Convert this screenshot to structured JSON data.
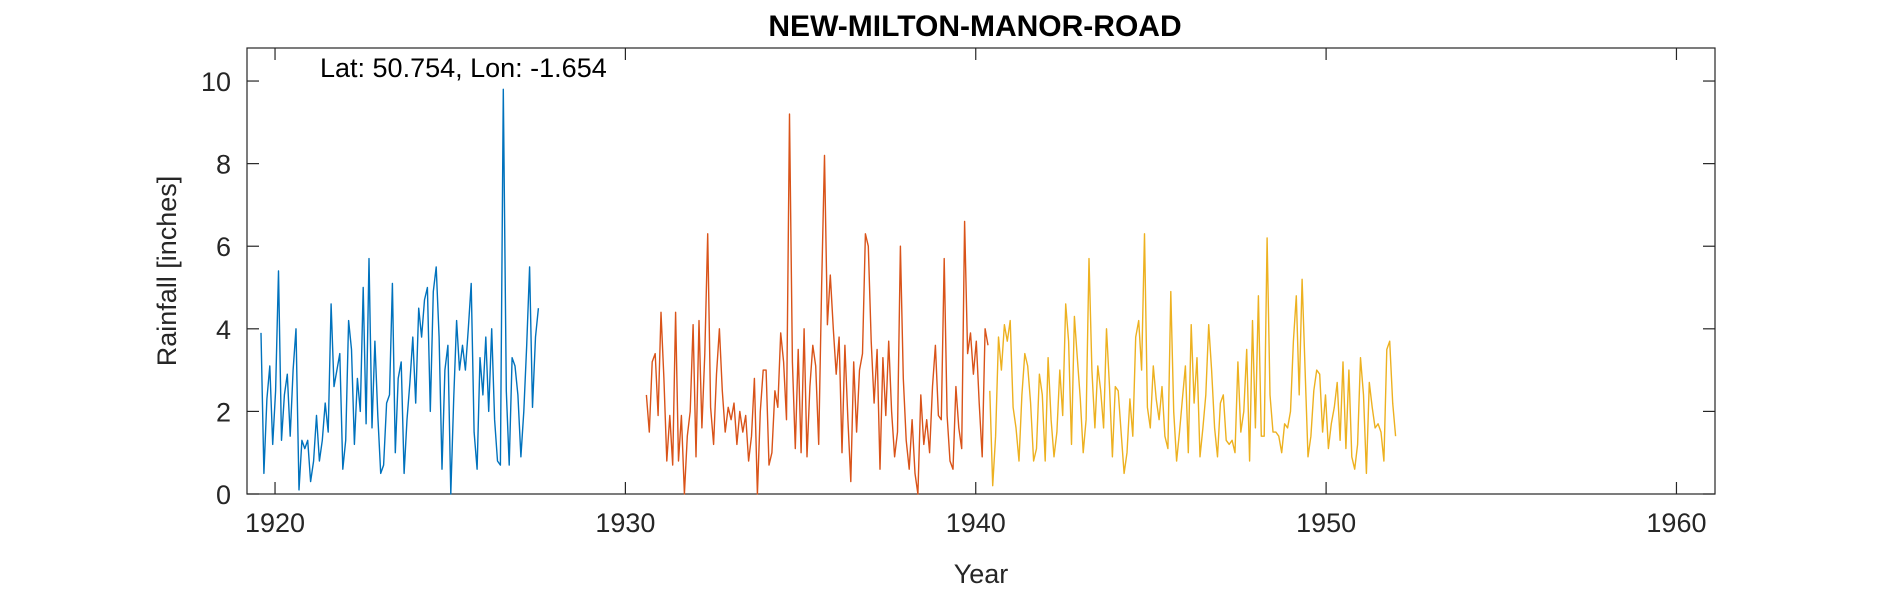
{
  "chart_data": {
    "type": "line",
    "title": "NEW-MILTON-MANOR-ROAD",
    "xlabel": "Year",
    "ylabel": "Rainfall [inches]",
    "annotation": "Lat: 50.754, Lon: -1.654",
    "xlim": [
      1919.2,
      1961.1
    ],
    "ylim": [
      0,
      10.8
    ],
    "xticks": [
      1920,
      1930,
      1940,
      1950,
      1960
    ],
    "yticks": [
      0,
      2,
      4,
      6,
      8,
      10
    ],
    "grid": false,
    "series": [
      {
        "color": "#0072BD",
        "x_start": 1919.6,
        "step": 0.08333,
        "values": [
          3.9,
          0.5,
          2.3,
          3.1,
          1.2,
          2.5,
          5.4,
          1.3,
          2.4,
          2.9,
          1.4,
          3.0,
          4.0,
          0.1,
          1.3,
          1.1,
          1.3,
          0.3,
          0.8,
          1.9,
          0.8,
          1.3,
          2.2,
          1.5,
          4.6,
          2.6,
          3.0,
          3.4,
          0.6,
          1.3,
          4.2,
          3.5,
          1.2,
          2.8,
          2.0,
          5.0,
          1.7,
          5.7,
          1.6,
          3.7,
          1.9,
          0.5,
          0.7,
          2.2,
          2.4,
          5.1,
          1.0,
          2.8,
          3.2,
          0.5,
          1.8,
          2.7,
          3.8,
          2.2,
          4.5,
          3.8,
          4.7,
          5.0,
          2.0,
          4.9,
          5.5,
          3.8,
          0.6,
          3.0,
          3.6,
          0.0,
          2.3,
          4.2,
          3.0,
          3.6,
          3.0,
          4.0,
          5.1,
          1.5,
          0.6,
          3.3,
          2.4,
          3.8,
          2.0,
          4.0,
          1.8,
          0.8,
          0.7,
          9.8,
          2.5,
          0.7,
          3.3,
          3.1,
          2.4,
          0.9,
          2.0,
          3.6,
          5.5,
          2.1,
          3.8,
          4.5
        ]
      },
      {
        "color": "#D95319",
        "x_start": 1930.6,
        "step": 0.08333,
        "values": [
          2.4,
          1.5,
          3.2,
          3.4,
          1.9,
          4.4,
          2.8,
          0.8,
          1.9,
          0.7,
          4.4,
          0.8,
          1.9,
          0.0,
          1.4,
          2.0,
          4.1,
          0.9,
          4.2,
          1.6,
          3.4,
          6.3,
          2.1,
          1.2,
          2.9,
          4.0,
          2.5,
          1.5,
          2.1,
          1.8,
          2.2,
          1.2,
          2.0,
          1.5,
          1.9,
          0.8,
          1.4,
          2.8,
          0.0,
          2.0,
          3.0,
          3.0,
          0.7,
          1.0,
          2.5,
          2.1,
          3.9,
          3.2,
          1.8,
          9.2,
          3.2,
          1.1,
          3.5,
          1.0,
          4.0,
          0.9,
          2.6,
          3.6,
          3.1,
          1.2,
          5.0,
          8.2,
          4.1,
          5.3,
          4.0,
          2.9,
          3.8,
          1.0,
          3.6,
          1.8,
          0.3,
          3.2,
          1.5,
          3.0,
          3.4,
          6.3,
          6.0,
          3.7,
          2.2,
          3.5,
          0.6,
          3.3,
          1.9,
          3.7,
          2.0,
          0.9,
          1.5,
          6.0,
          2.8,
          1.3,
          0.6,
          1.8,
          0.5,
          0.0,
          2.4,
          1.2,
          1.8,
          1.0,
          2.6,
          3.6,
          1.9,
          1.8,
          5.7,
          1.9,
          0.8,
          0.6,
          2.6,
          1.6,
          1.1,
          6.6,
          3.4,
          3.9,
          2.9,
          3.7,
          2.2,
          0.9,
          4.0,
          3.6
        ]
      },
      {
        "color": "#EDB120",
        "x_start": 1940.4,
        "step": 0.08333,
        "values": [
          2.5,
          0.2,
          1.4,
          3.8,
          3.0,
          4.1,
          3.7,
          4.2,
          2.1,
          1.6,
          0.8,
          2.4,
          3.4,
          3.1,
          2.2,
          0.8,
          1.1,
          2.9,
          2.4,
          0.8,
          3.3,
          1.8,
          0.9,
          1.5,
          3.0,
          1.9,
          4.6,
          3.7,
          1.2,
          4.3,
          3.3,
          2.3,
          1.0,
          1.8,
          5.7,
          3.0,
          1.6,
          3.1,
          2.5,
          1.6,
          4.0,
          2.6,
          0.9,
          2.6,
          2.5,
          1.5,
          0.5,
          1.0,
          2.3,
          1.4,
          3.8,
          4.2,
          3.0,
          6.3,
          2.1,
          1.6,
          3.1,
          2.3,
          1.8,
          2.6,
          1.4,
          1.1,
          4.9,
          2.0,
          0.8,
          1.5,
          2.3,
          3.1,
          1.0,
          4.1,
          2.2,
          3.3,
          0.9,
          1.6,
          2.4,
          4.1,
          3.0,
          1.6,
          0.9,
          2.2,
          2.4,
          1.3,
          1.2,
          1.3,
          1.0,
          3.2,
          1.5,
          2.0,
          3.5,
          0.8,
          4.2,
          1.6,
          4.8,
          1.4,
          1.4,
          6.2,
          2.4,
          1.5,
          1.5,
          1.4,
          1.0,
          1.7,
          1.6,
          2.0,
          3.7,
          4.8,
          2.4,
          5.2,
          3.0,
          0.9,
          1.4,
          2.5,
          3.0,
          2.9,
          1.5,
          2.4,
          1.1,
          1.7,
          2.1,
          2.7,
          1.3,
          3.2,
          1.1,
          3.0,
          0.9,
          0.6,
          1.2,
          3.3,
          2.4,
          0.5,
          2.7,
          2.1,
          1.6,
          1.7,
          1.5,
          0.8,
          3.5,
          3.7,
          2.2,
          1.4
        ]
      }
    ]
  }
}
